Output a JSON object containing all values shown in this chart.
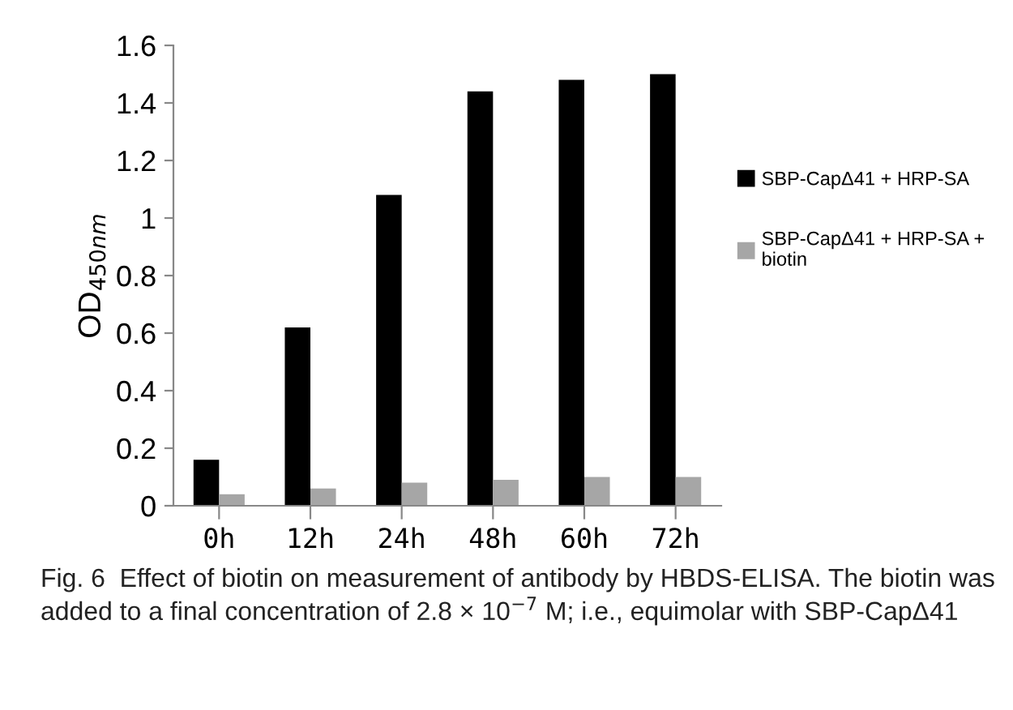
{
  "chart_data": {
    "type": "bar",
    "ylabel": "OD$_{450nm}$",
    "categories": [
      "0h",
      "12h",
      "24h",
      "48h",
      "60h",
      "72h"
    ],
    "series": [
      {
        "name": "SBP-CapΔ41 + HRP-SA",
        "color": "#000000",
        "values": [
          0.16,
          0.62,
          1.08,
          1.44,
          1.48,
          1.5
        ]
      },
      {
        "name": "SBP-CapΔ41 + HRP-SA + biotin",
        "color": "#a6a6a6",
        "values": [
          0.04,
          0.06,
          0.08,
          0.09,
          0.1,
          0.1
        ]
      }
    ],
    "ylim": [
      0,
      1.6
    ],
    "yticks": [
      0,
      0.2,
      0.4,
      0.6,
      0.8,
      1,
      1.2,
      1.4,
      1.6
    ],
    "grid": false,
    "legend": "right",
    "annotations": [
      "Fig. 6  Effect of biotin on measurement of antibody by HBDS-ELISA. The biotin was added to a final concentration of 2.8 × 10$^{−7}$ M; i.e., equimolar with SBP-CapΔ41"
    ]
  }
}
